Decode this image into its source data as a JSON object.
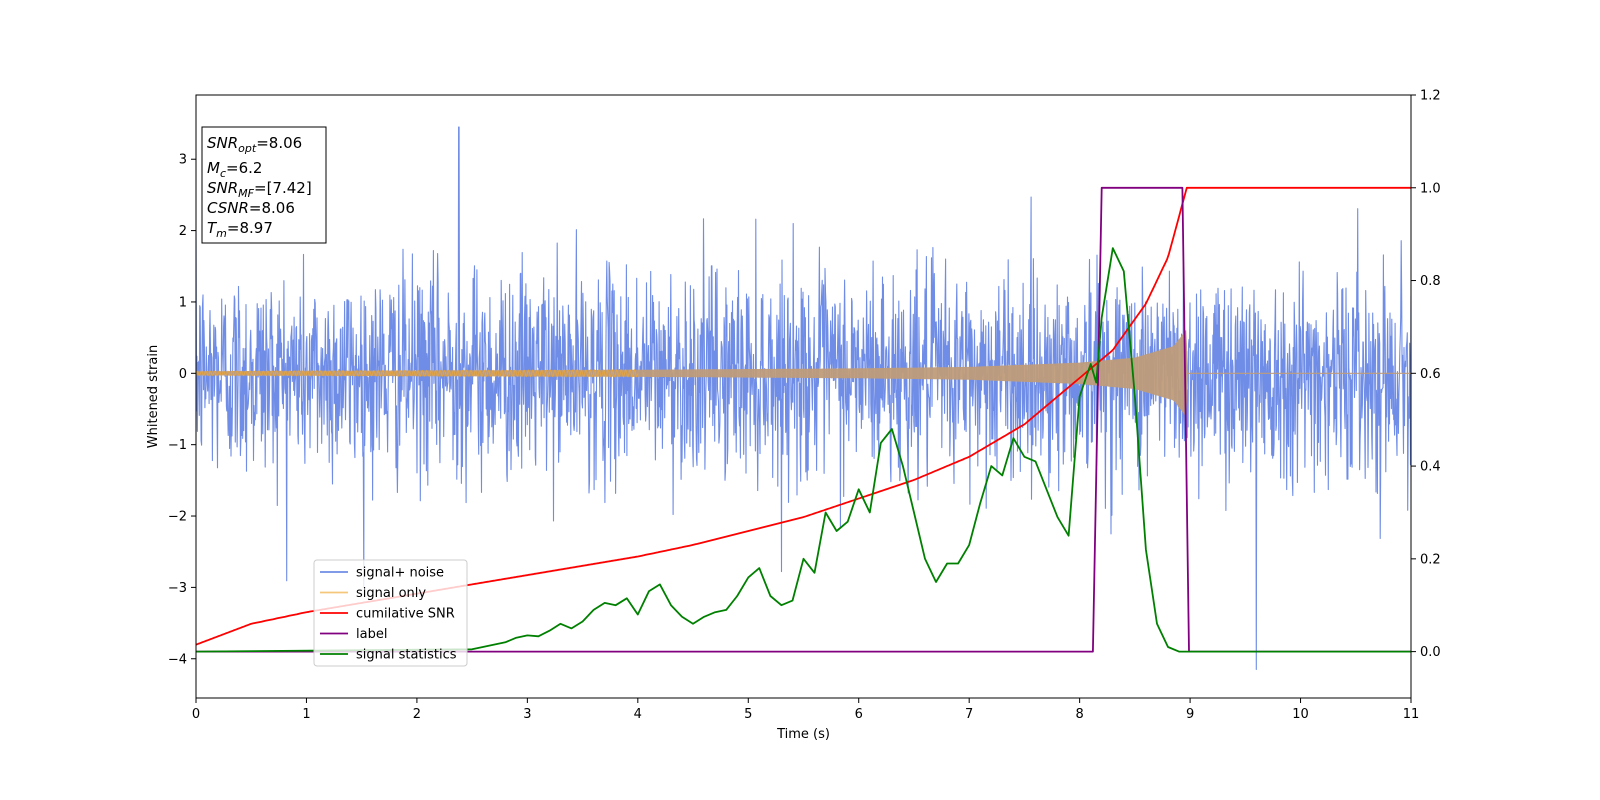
{
  "chart_data": {
    "type": "line",
    "xlabel": "Time (s)",
    "ylabel": "Whitened strain",
    "xlim": [
      0,
      11
    ],
    "ylim": [
      -4.55,
      3.9
    ],
    "y2lim": [
      -0.1,
      1.2
    ],
    "x_ticks": [
      "0",
      "1",
      "2",
      "3",
      "4",
      "5",
      "6",
      "7",
      "8",
      "9",
      "10",
      "11"
    ],
    "y_ticks": [
      "3",
      "2",
      "1",
      "0",
      "−1",
      "−2",
      "−3",
      "−4"
    ],
    "y2_ticks": [
      "1.2",
      "1.0",
      "0.8",
      "0.6",
      "0.4",
      "0.2",
      "0.0"
    ],
    "grid": false,
    "legend_position": "lower-left",
    "colors": {
      "signal_noise": "#6f8de6",
      "signal_only": "#f5a623",
      "overlap": "#bf9c7a",
      "cumulative_snr": "#ff0000",
      "label": "#800080",
      "signal_statistics": "#008000"
    },
    "series": [
      {
        "name": "signal+ noise",
        "axis": "left",
        "description_values": {
          "std": 0.72,
          "max": 3.45,
          "min": -4.15,
          "extremes": [
            [
              2.38,
              3.45
            ],
            [
              9.6,
              -4.15
            ]
          ]
        }
      },
      {
        "name": "signal only",
        "axis": "left",
        "envelope": {
          "x": [
            0,
            2,
            4,
            6,
            7,
            8,
            8.5,
            8.85,
            8.97
          ],
          "amp": [
            0.03,
            0.04,
            0.05,
            0.07,
            0.09,
            0.15,
            0.22,
            0.38,
            0.62
          ]
        }
      },
      {
        "name": "cumilative SNR",
        "axis": "right",
        "x": [
          0,
          0.5,
          1,
          1.5,
          2,
          2.5,
          3,
          3.5,
          4,
          4.5,
          5,
          5.5,
          6,
          6.5,
          7,
          7.5,
          8,
          8.3,
          8.6,
          8.8,
          8.97,
          11
        ],
        "y": [
          0.015,
          0.06,
          0.085,
          0.105,
          0.125,
          0.145,
          0.165,
          0.185,
          0.205,
          0.23,
          0.26,
          0.29,
          0.33,
          0.37,
          0.42,
          0.49,
          0.59,
          0.65,
          0.75,
          0.85,
          1.0,
          1.0
        ]
      },
      {
        "name": "label",
        "axis": "right",
        "x": [
          0,
          8.12,
          8.2,
          8.93,
          8.99,
          11
        ],
        "y": [
          0,
          0,
          1,
          1,
          0,
          0
        ]
      },
      {
        "name": "signal statistics",
        "axis": "right",
        "x": [
          0,
          2.5,
          2.8,
          2.9,
          3.0,
          3.1,
          3.2,
          3.3,
          3.4,
          3.5,
          3.6,
          3.7,
          3.8,
          3.9,
          4.0,
          4.1,
          4.2,
          4.3,
          4.4,
          4.5,
          4.6,
          4.7,
          4.8,
          4.9,
          5.0,
          5.1,
          5.2,
          5.3,
          5.4,
          5.5,
          5.6,
          5.7,
          5.8,
          5.9,
          6.0,
          6.1,
          6.2,
          6.3,
          6.4,
          6.5,
          6.6,
          6.7,
          6.8,
          6.9,
          7.0,
          7.1,
          7.2,
          7.3,
          7.4,
          7.5,
          7.6,
          7.7,
          7.8,
          7.9,
          8.0,
          8.1,
          8.15,
          8.2,
          8.3,
          8.4,
          8.5,
          8.6,
          8.7,
          8.8,
          8.9,
          9.0,
          11
        ],
        "y": [
          0.0,
          0.005,
          0.02,
          0.03,
          0.035,
          0.033,
          0.045,
          0.06,
          0.05,
          0.065,
          0.09,
          0.105,
          0.1,
          0.115,
          0.08,
          0.13,
          0.145,
          0.1,
          0.075,
          0.06,
          0.075,
          0.085,
          0.09,
          0.12,
          0.16,
          0.18,
          0.12,
          0.1,
          0.11,
          0.2,
          0.17,
          0.3,
          0.26,
          0.28,
          0.35,
          0.3,
          0.45,
          0.48,
          0.4,
          0.3,
          0.2,
          0.15,
          0.19,
          0.19,
          0.23,
          0.32,
          0.4,
          0.38,
          0.46,
          0.42,
          0.41,
          0.35,
          0.29,
          0.25,
          0.55,
          0.62,
          0.58,
          0.72,
          0.87,
          0.82,
          0.55,
          0.22,
          0.06,
          0.01,
          0.0,
          0.0,
          0.0
        ]
      }
    ],
    "annotation": {
      "snr_opt": {
        "main": "SNR",
        "sub": "opt",
        "value": "=8.06"
      },
      "mc": {
        "main": "M",
        "sub": "c",
        "value": "=6.2"
      },
      "snr_mf": {
        "main": "SNR",
        "sub": "MF",
        "value": "=[7.42]"
      },
      "csnr": {
        "main": "CSNR",
        "value": "=8.06"
      },
      "tm": {
        "main": "T",
        "sub": "m",
        "value": "=8.97"
      }
    },
    "legend": [
      "signal+ noise",
      "signal only",
      "cumilative SNR",
      "label",
      "signal statistics"
    ]
  }
}
